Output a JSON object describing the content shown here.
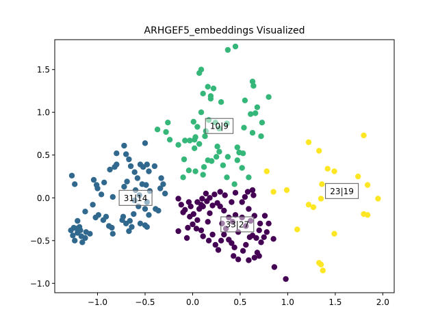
{
  "chart_data": {
    "type": "scatter",
    "title": "ARHGEF5_embeddings Visualized",
    "xlabel": "",
    "ylabel": "",
    "xlim": [
      -1.45,
      2.12
    ],
    "ylim": [
      -1.11,
      1.85
    ],
    "xticks": [
      -1.0,
      -0.5,
      0.0,
      0.5,
      1.0,
      1.5,
      2.0
    ],
    "yticks": [
      -1.0,
      -0.5,
      0.0,
      0.5,
      1.0,
      1.5
    ],
    "xtick_labels": [
      "−1.0",
      "−0.5",
      "0.0",
      "0.5",
      "1.0",
      "1.5",
      "2.0"
    ],
    "ytick_labels": [
      "−1.0",
      "−0.5",
      "0.0",
      "0.5",
      "1.0",
      "1.5"
    ],
    "grid": false,
    "legend": "none",
    "series": [
      {
        "color": "#31688e",
        "points": [
          [
            -1.27,
            0.26
          ],
          [
            -1.24,
            0.16
          ],
          [
            -1.04,
            0.21
          ],
          [
            -1.01,
            0.15
          ],
          [
            -0.93,
            0.18
          ],
          [
            -0.82,
            0.36
          ],
          [
            -0.8,
            0.39
          ],
          [
            -0.87,
            0.33
          ],
          [
            -0.8,
            0.52
          ],
          [
            -0.72,
            0.61
          ],
          [
            -0.7,
            0.51
          ],
          [
            -0.67,
            0.45
          ],
          [
            -0.65,
            0.37
          ],
          [
            -0.61,
            0.3
          ],
          [
            -0.55,
            0.39
          ],
          [
            -0.5,
            0.64
          ],
          [
            -0.48,
            0.39
          ],
          [
            -0.52,
            0.36
          ],
          [
            -0.46,
            0.31
          ],
          [
            -0.4,
            0.37
          ],
          [
            -0.58,
            0.23
          ],
          [
            -0.53,
            0.16
          ],
          [
            -0.49,
            0.15
          ],
          [
            -0.45,
            0.08
          ],
          [
            -0.33,
            0.23
          ],
          [
            -0.31,
            0.16
          ],
          [
            -0.29,
            0.05
          ],
          [
            -0.34,
            0.11
          ],
          [
            -0.69,
            0.19
          ],
          [
            -0.72,
            0.13
          ],
          [
            -0.6,
            0.09
          ],
          [
            -0.56,
            0.03
          ],
          [
            -0.61,
            -0.03
          ],
          [
            -0.57,
            -0.1
          ],
          [
            -0.48,
            -0.05
          ],
          [
            -0.5,
            -0.13
          ],
          [
            -0.46,
            -0.2
          ],
          [
            -0.39,
            -0.13
          ],
          [
            -0.36,
            -0.15
          ],
          [
            -1.0,
            0.11
          ],
          [
            -0.96,
            0.04
          ],
          [
            -0.84,
            0.01
          ],
          [
            -1.05,
            -0.08
          ],
          [
            -1.13,
            -0.16
          ],
          [
            -1.02,
            -0.23
          ],
          [
            -1.21,
            -0.27
          ],
          [
            -1.19,
            -0.34
          ],
          [
            -1.25,
            -0.35
          ],
          [
            -1.18,
            -0.38
          ],
          [
            -1.12,
            -0.4
          ],
          [
            -1.28,
            -0.38
          ],
          [
            -1.26,
            -0.44
          ],
          [
            -1.21,
            -0.41
          ],
          [
            -1.17,
            -0.45
          ],
          [
            -1.24,
            -0.5
          ],
          [
            -1.16,
            -0.52
          ],
          [
            -1.13,
            -0.47
          ],
          [
            -1.08,
            -0.42
          ],
          [
            -0.94,
            -0.26
          ],
          [
            -0.91,
            -0.22
          ],
          [
            -0.88,
            -0.33
          ],
          [
            -0.84,
            -0.42
          ],
          [
            -0.74,
            -0.26
          ],
          [
            -0.73,
            -0.22
          ],
          [
            -0.7,
            -0.3
          ],
          [
            -0.66,
            -0.27
          ],
          [
            -0.64,
            -0.34
          ],
          [
            -0.67,
            -0.39
          ],
          [
            -0.55,
            -0.3
          ],
          [
            -0.5,
            -0.32
          ],
          [
            -0.48,
            -0.34
          ],
          [
            -0.85,
            -0.35
          ],
          [
            -0.99,
            -0.2
          ],
          [
            -0.62,
            -0.19
          ],
          [
            -1.22,
            -0.36
          ]
        ]
      },
      {
        "color": "#440154",
        "points": [
          [
            -0.02,
            -0.1
          ],
          [
            0.05,
            -0.05
          ],
          [
            0.1,
            -0.01
          ],
          [
            0.14,
            0.05
          ],
          [
            0.18,
            0.0
          ],
          [
            0.23,
            0.04
          ],
          [
            0.29,
            0.07
          ],
          [
            0.34,
            0.03
          ],
          [
            0.41,
            -0.05
          ],
          [
            0.45,
            0.06
          ],
          [
            0.55,
            0.01
          ],
          [
            0.58,
            0.07
          ],
          [
            0.63,
            0.09
          ],
          [
            0.64,
            0.03
          ],
          [
            0.52,
            -0.05
          ],
          [
            0.59,
            -0.13
          ],
          [
            0.65,
            -0.21
          ],
          [
            0.61,
            -0.27
          ],
          [
            0.52,
            -0.23
          ],
          [
            0.45,
            -0.2
          ],
          [
            0.42,
            -0.28
          ],
          [
            0.38,
            -0.23
          ],
          [
            0.33,
            -0.15
          ],
          [
            0.29,
            -0.1
          ],
          [
            0.26,
            -0.06
          ],
          [
            0.21,
            -0.09
          ],
          [
            0.15,
            -0.04
          ],
          [
            0.11,
            -0.1
          ],
          [
            0.07,
            -0.13
          ],
          [
            -0.04,
            -0.05
          ],
          [
            -0.08,
            -0.14
          ],
          [
            -0.12,
            -0.08
          ],
          [
            -0.15,
            -0.01
          ],
          [
            -0.1,
            -0.17
          ],
          [
            -0.03,
            -0.22
          ],
          [
            0.01,
            -0.19
          ],
          [
            0.05,
            -0.26
          ],
          [
            0.0,
            -0.31
          ],
          [
            -0.05,
            -0.35
          ],
          [
            -0.15,
            -0.39
          ],
          [
            -0.06,
            -0.47
          ],
          [
            0.04,
            -0.36
          ],
          [
            0.09,
            -0.38
          ],
          [
            0.11,
            -0.45
          ],
          [
            0.17,
            -0.5
          ],
          [
            0.21,
            -0.43
          ],
          [
            0.24,
            -0.55
          ],
          [
            0.27,
            -0.61
          ],
          [
            0.3,
            -0.5
          ],
          [
            0.33,
            -0.43
          ],
          [
            0.35,
            -0.36
          ],
          [
            0.38,
            -0.49
          ],
          [
            0.41,
            -0.53
          ],
          [
            0.44,
            -0.58
          ],
          [
            0.43,
            -0.68
          ],
          [
            0.48,
            -0.72
          ],
          [
            0.53,
            -0.62
          ],
          [
            0.56,
            -0.55
          ],
          [
            0.6,
            -0.46
          ],
          [
            0.63,
            -0.44
          ],
          [
            0.67,
            -0.47
          ],
          [
            0.72,
            -0.52
          ],
          [
            0.75,
            -0.46
          ],
          [
            0.7,
            -0.38
          ],
          [
            0.71,
            -0.3
          ],
          [
            0.76,
            -0.21
          ],
          [
            0.8,
            -0.3
          ],
          [
            0.78,
            -0.4
          ],
          [
            0.85,
            -0.48
          ],
          [
            0.68,
            -0.64
          ],
          [
            0.65,
            -0.7
          ],
          [
            0.7,
            -0.68
          ],
          [
            0.59,
            -0.73
          ],
          [
            0.86,
            -0.81
          ],
          [
            0.98,
            -0.95
          ],
          [
            0.16,
            -0.28
          ],
          [
            0.18,
            -0.18
          ],
          [
            0.31,
            -0.3
          ],
          [
            0.48,
            -0.4
          ],
          [
            0.56,
            -0.33
          ],
          [
            0.09,
            -0.08
          ]
        ]
      },
      {
        "color": "#35b779",
        "points": [
          [
            0.37,
            1.73
          ],
          [
            0.45,
            1.77
          ],
          [
            0.09,
            1.5
          ],
          [
            0.07,
            1.46
          ],
          [
            0.16,
            1.3
          ],
          [
            0.11,
            1.22
          ],
          [
            0.19,
            1.19
          ],
          [
            0.19,
            1.16
          ],
          [
            0.3,
            1.12
          ],
          [
            0.63,
            1.36
          ],
          [
            0.64,
            1.31
          ],
          [
            0.55,
            1.14
          ],
          [
            0.68,
            1.06
          ],
          [
            0.66,
            0.99
          ],
          [
            0.8,
            1.18
          ],
          [
            0.61,
            0.98
          ],
          [
            0.73,
            0.88
          ],
          [
            0.54,
            0.82
          ],
          [
            0.36,
            0.87
          ],
          [
            0.28,
            0.81
          ],
          [
            0.24,
            0.88
          ],
          [
            0.17,
            0.91
          ],
          [
            0.09,
            1.0
          ],
          [
            0.05,
            0.83
          ],
          [
            0.03,
            0.71
          ],
          [
            -0.03,
            0.67
          ],
          [
            0.02,
            0.58
          ],
          [
            0.07,
            0.63
          ],
          [
            0.13,
            0.72
          ],
          [
            0.28,
            0.54
          ],
          [
            0.37,
            0.48
          ],
          [
            0.47,
            0.44
          ],
          [
            0.49,
            0.53
          ],
          [
            0.47,
            0.59
          ],
          [
            0.53,
            0.52
          ],
          [
            0.63,
            0.76
          ],
          [
            0.72,
            0.72
          ],
          [
            0.52,
            0.35
          ],
          [
            0.59,
            0.24
          ],
          [
            0.44,
            0.16
          ],
          [
            0.36,
            0.24
          ],
          [
            0.32,
            0.38
          ],
          [
            0.25,
            0.48
          ],
          [
            0.16,
            0.44
          ],
          [
            0.12,
            0.36
          ],
          [
            0.11,
            0.27
          ],
          [
            0.03,
            0.31
          ],
          [
            -0.09,
            0.45
          ],
          [
            -0.15,
            0.62
          ],
          [
            -0.26,
            0.88
          ],
          [
            -0.28,
            0.77
          ],
          [
            -0.37,
            0.8
          ],
          [
            -0.24,
            0.68
          ],
          [
            -0.08,
            0.67
          ],
          [
            -0.04,
            0.32
          ],
          [
            -0.1,
            0.24
          ],
          [
            0.22,
            1.28
          ],
          [
            0.01,
            0.89
          ],
          [
            0.02,
            0.68
          ],
          [
            0.2,
            0.43
          ],
          [
            0.26,
            0.6
          ],
          [
            0.14,
            0.78
          ]
        ]
      },
      {
        "color": "#fde725",
        "points": [
          [
            1.22,
            0.65
          ],
          [
            1.33,
            0.55
          ],
          [
            1.8,
            0.73
          ],
          [
            1.42,
            0.34
          ],
          [
            1.36,
            0.16
          ],
          [
            1.49,
            0.31
          ],
          [
            1.74,
            0.25
          ],
          [
            1.84,
            0.15
          ],
          [
            1.95,
            -0.01
          ],
          [
            1.8,
            -0.19
          ],
          [
            1.84,
            -0.2
          ],
          [
            1.22,
            -0.08
          ],
          [
            1.27,
            -0.11
          ],
          [
            1.35,
            -0.01
          ],
          [
            1.49,
            -0.42
          ],
          [
            1.1,
            -0.37
          ],
          [
            1.35,
            -0.78
          ],
          [
            1.33,
            -0.76
          ],
          [
            1.37,
            -0.85
          ],
          [
            0.85,
            0.07
          ],
          [
            0.99,
            0.09
          ],
          [
            0.78,
            0.31
          ]
        ]
      }
    ],
    "annotations": [
      {
        "label": "10|9",
        "x": 0.28,
        "y": 0.84
      },
      {
        "label": "31|14",
        "x": -0.6,
        "y": 0.0
      },
      {
        "label": "33|27",
        "x": 0.47,
        "y": -0.31
      },
      {
        "label": "23|19",
        "x": 1.57,
        "y": 0.08
      }
    ],
    "annotation_fill": "#ffffff",
    "annotation_border": "#555555"
  }
}
